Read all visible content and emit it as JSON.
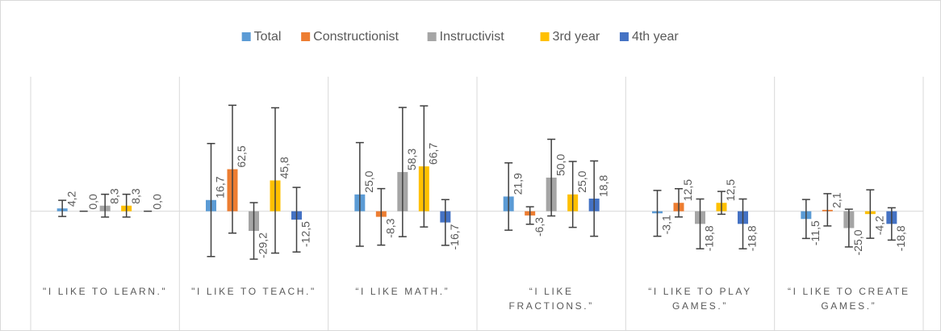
{
  "chart_data": {
    "type": "bar",
    "categories": [
      "\"I LIKE TO LEARN.\"",
      "\"I LIKE TO TEACH.\"",
      "“I LIKE MATH.”",
      "“I LIKE FRACTIONS.”",
      "“I LIKE TO PLAY GAMES.”",
      "“I LIKE TO CREATE GAMES.”"
    ],
    "series": [
      {
        "name": "Total",
        "color": "#5b9bd5",
        "values": [
          4.2,
          16.7,
          25.0,
          21.9,
          -3.1,
          -11.5
        ],
        "value_labels": [
          "4,2",
          "16,7",
          "25,0",
          "21,9",
          "-3,1",
          "-11,5"
        ],
        "errors": [
          12,
          84,
          77,
          50,
          34,
          29
        ]
      },
      {
        "name": "Constructionist",
        "color": "#ed7d31",
        "values": [
          0.0,
          62.5,
          -8.3,
          -6.3,
          12.5,
          2.1
        ],
        "value_labels": [
          "0,0",
          "62,5",
          "-8,3",
          "-6,3",
          "12,5",
          "2,1"
        ],
        "errors": [
          0,
          95,
          42,
          13,
          21,
          24
        ]
      },
      {
        "name": "Instructivist",
        "color": "#a5a5a5",
        "values": [
          8.3,
          -29.2,
          58.3,
          50.0,
          -18.8,
          -25.0
        ],
        "value_labels": [
          "8,3",
          "-29,2",
          "58,3",
          "50,0",
          "-18,8",
          "-25,0"
        ],
        "errors": [
          17,
          42,
          96,
          57,
          37,
          28
        ]
      },
      {
        "name": "3rd year",
        "color": "#ffc000",
        "values": [
          8.3,
          45.8,
          66.7,
          25.0,
          12.5,
          -4.2
        ],
        "value_labels": [
          "8,3",
          "45,8",
          "66,7",
          "25,0",
          "12,5",
          "-4,2"
        ],
        "errors": [
          17,
          108,
          90,
          49,
          17,
          36
        ]
      },
      {
        "name": "4th year",
        "color": "#4472c4",
        "values": [
          0.0,
          -12.5,
          -16.7,
          18.8,
          -18.8,
          -18.8
        ],
        "value_labels": [
          "0,0",
          "-12,5",
          "-16,7",
          "18,8",
          "-18,8",
          "-18,8"
        ],
        "errors": [
          0,
          48,
          34,
          56,
          37,
          24
        ]
      }
    ],
    "ylim": [
      -100,
      200
    ],
    "legend": "top"
  }
}
